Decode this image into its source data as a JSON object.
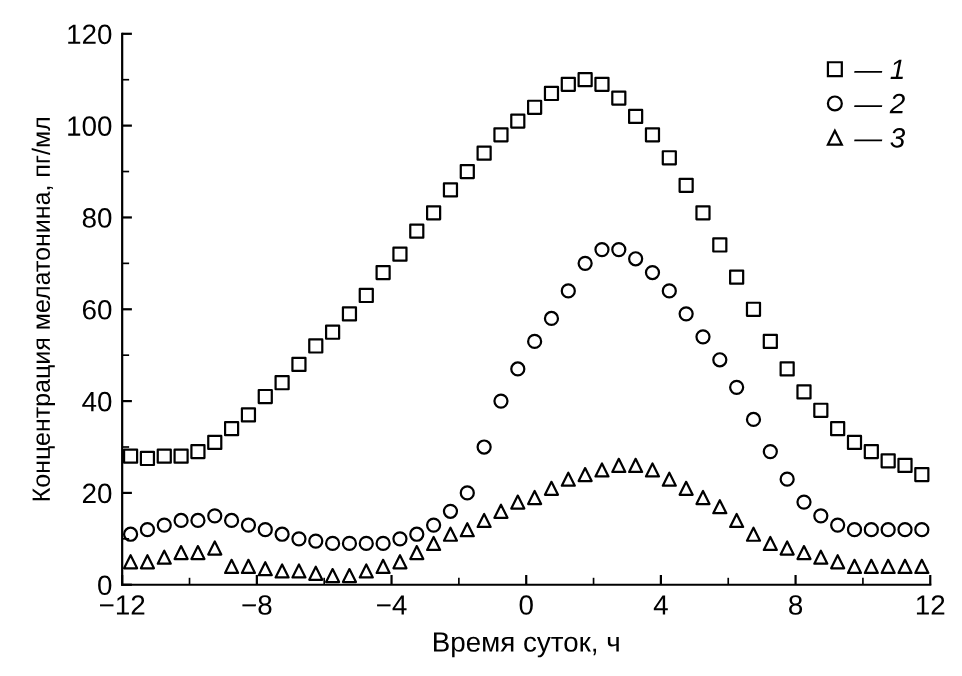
{
  "chart_data": {
    "type": "scatter",
    "xlabel": "Время суток, ч",
    "ylabel": "Концентрация мелатонина, пг/мл",
    "x": [
      -11.75,
      -11.25,
      -10.75,
      -10.25,
      -9.75,
      -9.25,
      -8.75,
      -8.25,
      -7.75,
      -7.25,
      -6.75,
      -6.25,
      -5.75,
      -5.25,
      -4.75,
      -4.25,
      -3.75,
      -3.25,
      -2.75,
      -2.25,
      -1.75,
      -1.25,
      -0.75,
      -0.25,
      0.25,
      0.75,
      1.25,
      1.75,
      2.25,
      2.75,
      3.25,
      3.75,
      4.25,
      4.75,
      5.25,
      5.75,
      6.25,
      6.75,
      7.25,
      7.75,
      8.25,
      8.75,
      9.25,
      9.75,
      10.25,
      10.75,
      11.25,
      11.75
    ],
    "series": [
      {
        "name": "— 1",
        "color": "#000000",
        "marker": "square",
        "values": [
          28,
          27.5,
          28,
          28,
          29,
          31,
          34,
          37,
          41,
          44,
          48,
          52,
          55,
          59,
          63,
          68,
          72,
          77,
          81,
          86,
          90,
          94,
          98,
          101,
          104,
          107,
          109,
          110,
          109,
          106,
          102,
          98,
          93,
          87,
          81,
          74,
          67,
          60,
          53,
          47,
          42,
          38,
          34,
          31,
          29,
          27,
          26,
          24
        ]
      },
      {
        "name": "— 2",
        "color": "#000000",
        "marker": "circle",
        "values": [
          11,
          12,
          13,
          14,
          14,
          15,
          14,
          13,
          12,
          11,
          10,
          9.5,
          9,
          9,
          9,
          9,
          10,
          11,
          13,
          16,
          20,
          30,
          40,
          47,
          53,
          58,
          64,
          70,
          73,
          73,
          71,
          68,
          64,
          59,
          54,
          49,
          43,
          36,
          29,
          23,
          18,
          15,
          13,
          12,
          12,
          12,
          12,
          12
        ]
      },
      {
        "name": "— 3",
        "color": "#000000",
        "marker": "triangle",
        "values": [
          5,
          5,
          6,
          7,
          7,
          8,
          4,
          4,
          3.5,
          3,
          3,
          2.5,
          2,
          2,
          3,
          4,
          5,
          7,
          9,
          11,
          12,
          14,
          16,
          18,
          19,
          21,
          23,
          24,
          25,
          26,
          26,
          25,
          23,
          21,
          19,
          17,
          14,
          11,
          9,
          8,
          7,
          6,
          5,
          4,
          4,
          4,
          4,
          4
        ]
      }
    ],
    "xlim": [
      -12,
      12
    ],
    "xticks": [
      {
        "value": -12,
        "label": "−12"
      },
      {
        "value": -8,
        "label": "−8"
      },
      {
        "value": -4,
        "label": "−4"
      },
      0,
      4,
      8,
      12
    ],
    "ylim": [
      0,
      120
    ],
    "yticks": [
      0,
      20,
      40,
      60,
      80,
      100,
      120
    ],
    "grid": false,
    "legend": "top right"
  }
}
